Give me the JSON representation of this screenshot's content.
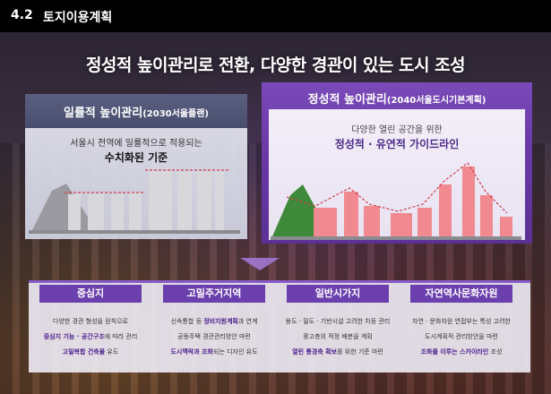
{
  "header": {
    "section_number": "4.2",
    "section_title": "토지이용계획"
  },
  "main_title": "정성적 높이관리로 전환, 다양한 경관이 있는 도시 조성",
  "left_panel": {
    "title": "일률적 높이관리",
    "title_suffix": "(2030서울플랜)",
    "description": "서울시 전역에 일률적으로 적용되는",
    "keyword": "수치화된 기준"
  },
  "right_panel": {
    "title": "정성적 높이관리",
    "title_suffix": "(2040서울도시기본계획)",
    "description": "다양한 열린 공간을 위한",
    "keyword": "정성적 · 유연적 가이드라인"
  },
  "cards": [
    {
      "title": "중심지",
      "line1": "다양한 경관 형성을 원칙으로",
      "line2_bold": "중심지 기능 · 공간구조",
      "line2_rest": "에 따라 관리",
      "line3_bold": "고밀복합 건축물",
      "line3_rest": " 유도"
    },
    {
      "title": "고밀주거지역",
      "line1_pre": "신속통합 등 ",
      "line1_bold": "정비지원계획",
      "line1_rest": "과 연계",
      "line2": "공동주택 경관관리방안 마련",
      "line3_bold": "도시맥락과 조화",
      "line3_rest": "되는 디자인 유도"
    },
    {
      "title": "일반시가지",
      "line1": "용도 · 밀도 · 기반시설 고려한 차등 관리",
      "line2": "중고층의 적정 배분을 계획",
      "line3_bold": "열린 통경축 확보",
      "line3_rest": "를 위한 기준 마련"
    },
    {
      "title": "자연역사문화자원",
      "line1": "자연 · 문화자원 연접부는 특성 고려한",
      "line2": "도시계획적 관리방안을 마련",
      "line3_bold": "조화를 이루는 스카이라인",
      "line3_rest": " 조성"
    }
  ],
  "colors": {
    "accent_purple": "#6b3fae",
    "bar_pink": "#f08a90",
    "mountain_green": "#3e8a3a",
    "bar_gray": "#d8d8dc",
    "mountain_gray": "#9a9aa0",
    "dashed_red": "#d0404a"
  }
}
